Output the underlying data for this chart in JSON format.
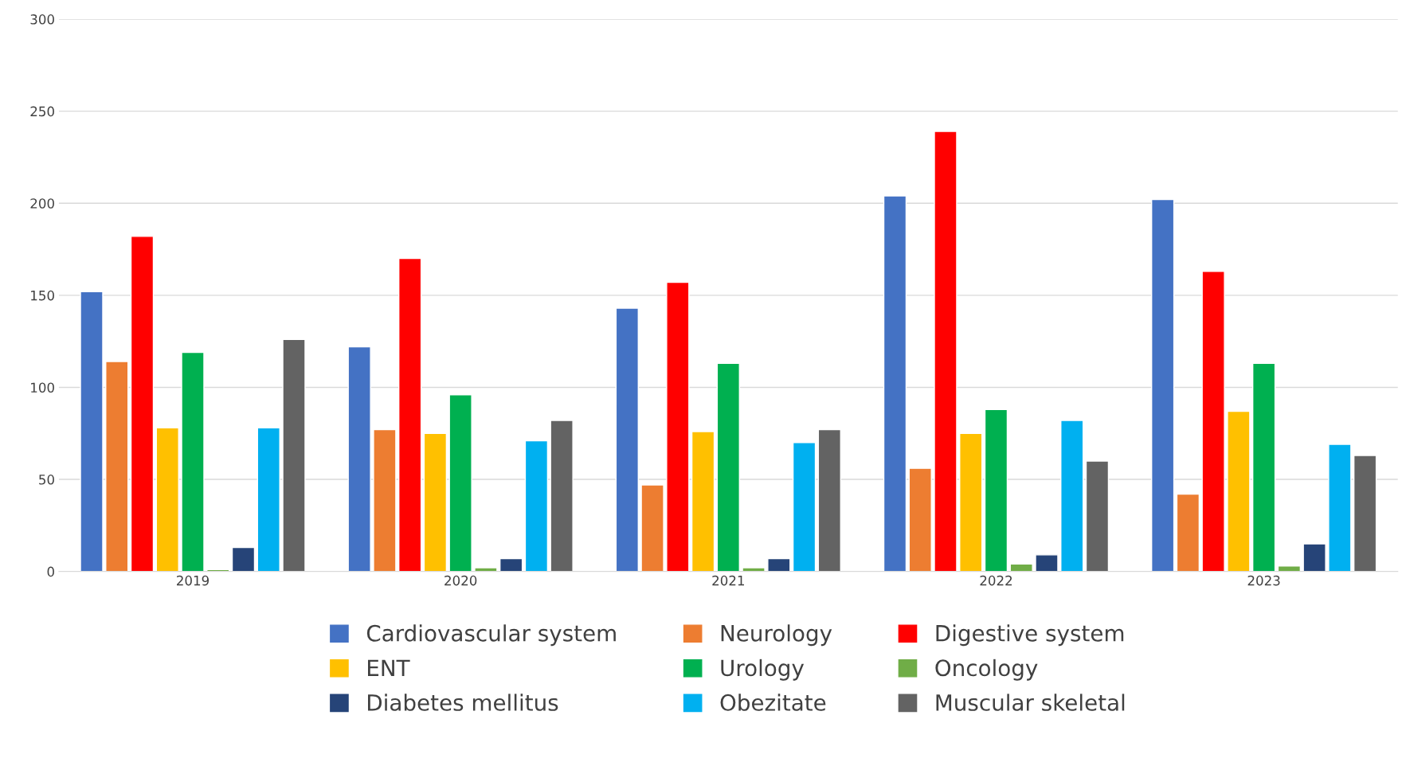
{
  "chart_data": {
    "type": "bar",
    "categories": [
      "2019",
      "2020",
      "2021",
      "2022",
      "2023"
    ],
    "series": [
      {
        "name": "Cardiovascular system",
        "color": "#4472c4",
        "values": [
          152,
          122,
          143,
          204,
          202
        ]
      },
      {
        "name": "Neurology",
        "color": "#ed7d31",
        "values": [
          114,
          77,
          47,
          56,
          42
        ]
      },
      {
        "name": "Digestive system",
        "color": "#ff0000",
        "values": [
          182,
          170,
          157,
          239,
          163
        ]
      },
      {
        "name": "ENT",
        "color": "#ffc000",
        "values": [
          78,
          75,
          76,
          75,
          87
        ]
      },
      {
        "name": "Urology",
        "color": "#00b050",
        "values": [
          119,
          96,
          113,
          88,
          113
        ]
      },
      {
        "name": "Oncology",
        "color": "#70ad47",
        "values": [
          1,
          2,
          2,
          4,
          3
        ]
      },
      {
        "name": "Diabetes mellitus",
        "color": "#264478",
        "values": [
          13,
          7,
          7,
          9,
          15
        ]
      },
      {
        "name": "Obezitate",
        "color": "#00b0f0",
        "values": [
          78,
          71,
          70,
          82,
          69
        ]
      },
      {
        "name": "Muscular skeletal",
        "color": "#636363",
        "values": [
          126,
          82,
          77,
          60,
          63
        ]
      }
    ],
    "ylim": [
      0,
      300
    ],
    "yticks": [
      0,
      50,
      100,
      150,
      200,
      250,
      300
    ],
    "grid": "y",
    "legend": "bottom"
  }
}
